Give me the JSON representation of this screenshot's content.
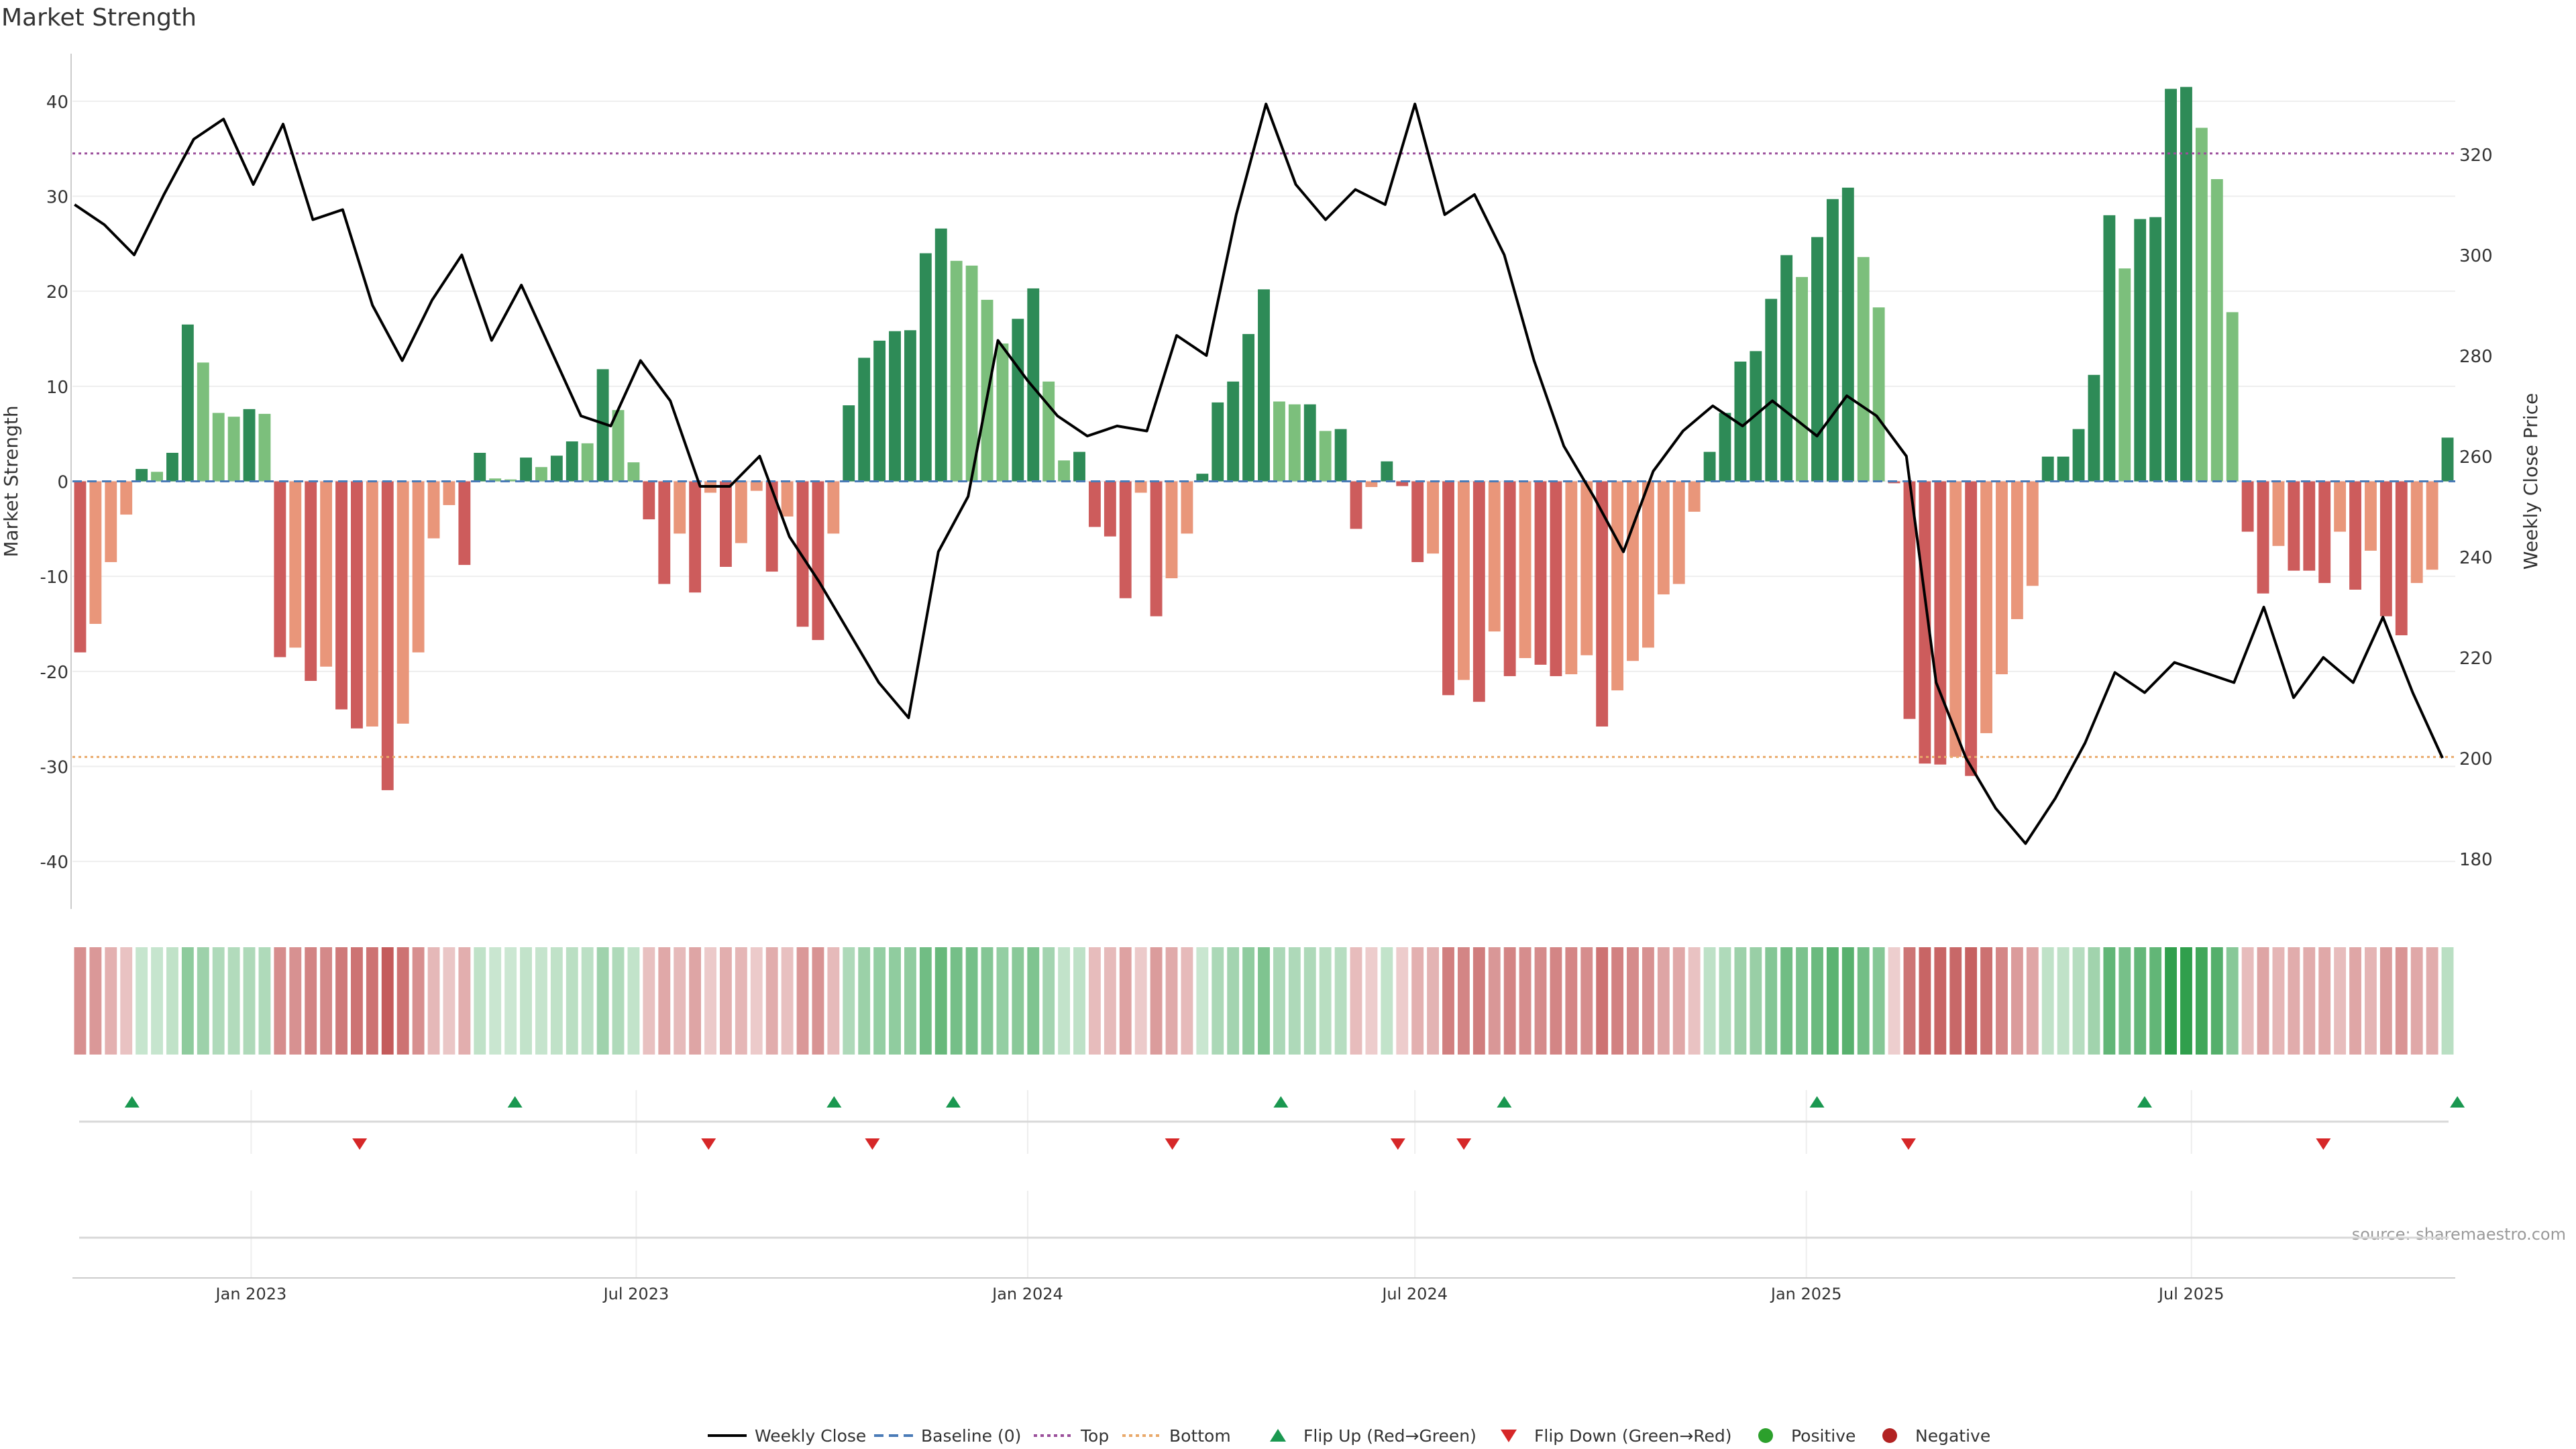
{
  "chart_data": {
    "type": "bar",
    "title": "Market Strength",
    "ylabel_left": "Market Strength",
    "ylabel_right": "Weekly Close Price",
    "ylim_left": [
      -45,
      45
    ],
    "ylim_right": [
      170,
      340
    ],
    "yticks_left": [
      -40,
      -30,
      -20,
      -10,
      0,
      10,
      20,
      30,
      40
    ],
    "yticks_right": [
      180,
      200,
      220,
      240,
      260,
      280,
      300,
      320
    ],
    "x_start": "2022-10-09",
    "x_end": "2025-11-02",
    "xticks": [
      {
        "date": "2023-01-01",
        "label": "Jan 2023"
      },
      {
        "date": "2023-07-01",
        "label": "Jul 2023"
      },
      {
        "date": "2024-01-01",
        "label": "Jan 2024"
      },
      {
        "date": "2024-07-01",
        "label": "Jul 2024"
      },
      {
        "date": "2025-01-01",
        "label": "Jan 2025"
      },
      {
        "date": "2025-07-01",
        "label": "Jul 2025"
      }
    ],
    "top_line": 34.5,
    "bottom_line": -29,
    "strength": [
      -18,
      -15,
      -8.5,
      -3.5,
      1.3,
      1,
      3,
      16.5,
      12.5,
      7.2,
      6.8,
      7.6,
      7.1,
      -18.5,
      -17.5,
      -21,
      -19.5,
      -24,
      -26,
      -25.8,
      -32.5,
      -25.5,
      -18,
      -6,
      -2.5,
      -8.8,
      3,
      0.3,
      0.2,
      2.5,
      1.5,
      2.7,
      4.2,
      4,
      11.8,
      7.5,
      2,
      -4,
      -10.8,
      -5.5,
      -11.7,
      -1.2,
      -9,
      -6.5,
      -1,
      -9.5,
      -3.7,
      -15.3,
      -16.7,
      -5.5,
      8,
      13,
      14.8,
      15.8,
      15.9,
      24,
      26.6,
      23.2,
      22.7,
      19.1,
      14.5,
      17.1,
      20.3,
      10.5,
      2.2,
      3.1,
      -4.8,
      -5.8,
      -12.3,
      -1.2,
      -14.2,
      -10.2,
      -5.5,
      0.8,
      8.3,
      10.5,
      15.5,
      20.2,
      8.4,
      8.1,
      8.1,
      5.3,
      5.5,
      -5,
      -0.6,
      2.1,
      -0.5,
      -8.5,
      -7.6,
      -22.5,
      -20.9,
      -23.2,
      -15.8,
      -20.5,
      -18.6,
      -19.3,
      -20.5,
      -20.3,
      -18.3,
      -25.8,
      -22,
      -18.9,
      -17.5,
      -11.9,
      -10.8,
      -3.2,
      3.1,
      7.2,
      12.6,
      13.7,
      19.2,
      23.8,
      21.5,
      25.7,
      29.7,
      30.9,
      23.6,
      18.3,
      -0.2,
      -25,
      -29.7,
      -29.8,
      -29,
      -31,
      -26.5,
      -20.3,
      -14.5,
      -11,
      2.6,
      2.6,
      5.5,
      11.2,
      28,
      22.4,
      27.6,
      27.8,
      41.3,
      41.5,
      37.2,
      31.8,
      17.8,
      -5.3,
      -11.8,
      -6.8,
      -9.4,
      -9.4,
      -10.7,
      -5.3,
      -11.4,
      -7.3,
      -14.2,
      -16.2,
      -10.7,
      -9.3,
      4.6
    ],
    "flip_up_dates": [
      "2022-11-06",
      "2023-05-05",
      "2023-10-02",
      "2023-11-27",
      "2024-04-29",
      "2024-08-12",
      "2025-01-06",
      "2025-06-09",
      "2025-11-03"
    ],
    "flip_down_dates": [
      "2023-02-21",
      "2023-08-04",
      "2023-10-20",
      "2024-03-09",
      "2024-06-23",
      "2024-07-24",
      "2025-02-18",
      "2025-09-01"
    ],
    "close": [
      [
        "2022-10-10",
        310
      ],
      [
        "2022-10-24",
        306
      ],
      [
        "2022-11-07",
        300
      ],
      [
        "2022-11-21",
        312
      ],
      [
        "2022-12-05",
        323
      ],
      [
        "2022-12-19",
        327
      ],
      [
        "2023-01-02",
        314
      ],
      [
        "2023-01-16",
        326
      ],
      [
        "2023-01-30",
        307
      ],
      [
        "2023-02-13",
        309
      ],
      [
        "2023-02-27",
        290
      ],
      [
        "2023-03-13",
        279
      ],
      [
        "2023-03-27",
        291
      ],
      [
        "2023-04-10",
        300
      ],
      [
        "2023-04-24",
        283
      ],
      [
        "2023-05-08",
        294
      ],
      [
        "2023-05-22",
        281
      ],
      [
        "2023-06-05",
        268
      ],
      [
        "2023-06-19",
        266
      ],
      [
        "2023-07-03",
        279
      ],
      [
        "2023-07-17",
        271
      ],
      [
        "2023-07-31",
        254
      ],
      [
        "2023-08-14",
        254
      ],
      [
        "2023-08-28",
        260
      ],
      [
        "2023-09-11",
        244
      ],
      [
        "2023-09-25",
        235
      ],
      [
        "2023-10-09",
        225
      ],
      [
        "2023-10-23",
        215
      ],
      [
        "2023-11-06",
        208
      ],
      [
        "2023-11-20",
        241
      ],
      [
        "2023-12-04",
        252
      ],
      [
        "2023-12-18",
        283
      ],
      [
        "2024-01-01",
        275
      ],
      [
        "2024-01-15",
        268
      ],
      [
        "2024-01-29",
        264
      ],
      [
        "2024-02-12",
        266
      ],
      [
        "2024-02-26",
        265
      ],
      [
        "2024-03-11",
        284
      ],
      [
        "2024-03-25",
        280
      ],
      [
        "2024-04-08",
        308
      ],
      [
        "2024-04-22",
        330
      ],
      [
        "2024-05-06",
        314
      ],
      [
        "2024-05-20",
        307
      ],
      [
        "2024-06-03",
        313
      ],
      [
        "2024-06-17",
        310
      ],
      [
        "2024-07-01",
        330
      ],
      [
        "2024-07-15",
        308
      ],
      [
        "2024-07-29",
        312
      ],
      [
        "2024-08-12",
        300
      ],
      [
        "2024-08-26",
        279
      ],
      [
        "2024-09-09",
        262
      ],
      [
        "2024-09-23",
        252
      ],
      [
        "2024-10-07",
        241
      ],
      [
        "2024-10-21",
        257
      ],
      [
        "2024-11-04",
        265
      ],
      [
        "2024-11-18",
        270
      ],
      [
        "2024-12-02",
        266
      ],
      [
        "2024-12-16",
        271
      ],
      [
        "2025-01-06",
        264
      ],
      [
        "2025-01-20",
        272
      ],
      [
        "2025-02-03",
        268
      ],
      [
        "2025-02-17",
        260
      ],
      [
        "2025-03-03",
        215
      ],
      [
        "2025-03-17",
        200
      ],
      [
        "2025-03-31",
        190
      ],
      [
        "2025-04-14",
        183
      ],
      [
        "2025-04-28",
        192
      ],
      [
        "2025-05-12",
        203
      ],
      [
        "2025-05-26",
        217
      ],
      [
        "2025-06-09",
        213
      ],
      [
        "2025-06-23",
        219
      ],
      [
        "2025-07-07",
        217
      ],
      [
        "2025-07-21",
        215
      ],
      [
        "2025-08-04",
        230
      ],
      [
        "2025-08-18",
        212
      ],
      [
        "2025-09-01",
        220
      ],
      [
        "2025-09-15",
        215
      ],
      [
        "2025-09-29",
        228
      ],
      [
        "2025-10-13",
        213
      ],
      [
        "2025-10-27",
        200
      ]
    ],
    "legend": [
      "Weekly Close",
      "Baseline (0)",
      "Top",
      "Bottom",
      "Flip Up (Red→Green)",
      "Flip Down (Green→Red)",
      "Positive",
      "Negative"
    ],
    "legend_position": "bottom-center",
    "colors": {
      "strong_positive": "#2e8b57",
      "weak_positive": "#7cbf7c",
      "strong_negative": "#cd5c5c",
      "weak_negative": "#e9967a",
      "close_line": "#000000",
      "baseline": "#4a7bb7",
      "top": "#9b4f9b",
      "bottom": "#e9a96a",
      "flip_up": "#1a9850",
      "flip_down": "#d62728",
      "positive_dot": "#2ca02c",
      "negative_dot": "#b22222"
    }
  },
  "source_text": "source: sharemaestro.com"
}
